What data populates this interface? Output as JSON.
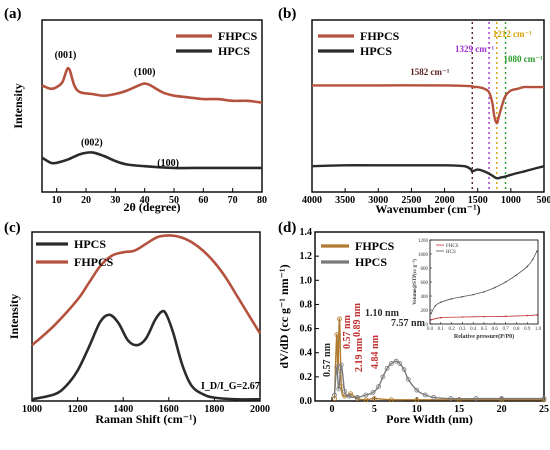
{
  "colors": {
    "fhpcs": "#b5523e",
    "hpcs": "#2b2b2b",
    "fhpcs_d": "#b07a30",
    "hpcs_d": "#7a7a7a"
  },
  "chart_data": [
    {
      "panel": "(a)",
      "type": "line",
      "xlabel": "2θ (degree)",
      "ylabel": "Intensity",
      "xlim": [
        5,
        80
      ],
      "xticks": [
        10,
        20,
        30,
        40,
        50,
        60,
        70,
        80
      ],
      "legend_position": "top-right",
      "series": [
        {
          "name": "FHPCS",
          "color": "#b5523e",
          "x": [
            5,
            8,
            10,
            12,
            14,
            16,
            18,
            22,
            26,
            30,
            34,
            38,
            40,
            42,
            46,
            50,
            55,
            60,
            65,
            70,
            75,
            80
          ],
          "y": [
            0.62,
            0.6,
            0.61,
            0.64,
            0.72,
            0.62,
            0.58,
            0.57,
            0.56,
            0.57,
            0.59,
            0.62,
            0.63,
            0.62,
            0.58,
            0.56,
            0.55,
            0.54,
            0.54,
            0.53,
            0.53,
            0.52
          ]
        },
        {
          "name": "HPCS",
          "color": "#2b2b2b",
          "x": [
            5,
            8,
            10,
            14,
            18,
            22,
            26,
            30,
            34,
            40,
            50,
            60,
            70,
            80
          ],
          "y": [
            0.2,
            0.17,
            0.17,
            0.19,
            0.22,
            0.23,
            0.21,
            0.18,
            0.16,
            0.15,
            0.14,
            0.14,
            0.14,
            0.14
          ]
        }
      ],
      "annotations": [
        {
          "text": "(001)",
          "x": 13,
          "y": 0.78
        },
        {
          "text": "(100)",
          "x": 40,
          "y": 0.68
        },
        {
          "text": "(002)",
          "x": 22,
          "y": 0.27
        },
        {
          "text": "(100)",
          "x": 48,
          "y": 0.15
        }
      ]
    },
    {
      "panel": "(b)",
      "type": "line",
      "xlabel": "Wavenumber (cm⁻¹)",
      "ylabel": "",
      "xlim": [
        4000,
        500
      ],
      "xticks": [
        4000,
        3500,
        3000,
        2500,
        2000,
        1500,
        1000,
        500
      ],
      "legend_position": "top-left",
      "series": [
        {
          "name": "FHPCS",
          "color": "#b5523e",
          "x": [
            4000,
            3000,
            2000,
            1600,
            1582,
            1500,
            1400,
            1329,
            1280,
            1250,
            1212,
            1180,
            1120,
            1080,
            1000,
            900,
            800,
            700,
            600,
            500
          ],
          "y": [
            0.62,
            0.62,
            0.62,
            0.615,
            0.61,
            0.61,
            0.6,
            0.58,
            0.52,
            0.44,
            0.4,
            0.44,
            0.52,
            0.56,
            0.59,
            0.6,
            0.61,
            0.61,
            0.61,
            0.61
          ]
        },
        {
          "name": "HPCS",
          "color": "#2b2b2b",
          "x": [
            4000,
            3500,
            3000,
            2000,
            1700,
            1600,
            1582,
            1500,
            1400,
            1300,
            1212,
            1150,
            1080,
            1000,
            800,
            600,
            500
          ],
          "y": [
            0.15,
            0.155,
            0.155,
            0.155,
            0.15,
            0.13,
            0.12,
            0.13,
            0.12,
            0.1,
            0.08,
            0.085,
            0.09,
            0.1,
            0.12,
            0.14,
            0.15
          ]
        }
      ],
      "annotations": [
        {
          "text": "1582 cm⁻¹",
          "x": 1582,
          "color": "#5a1f1f"
        },
        {
          "text": "1329 cm⁻¹",
          "x": 1329,
          "color": "#a030d0"
        },
        {
          "text": "1212 cm⁻¹",
          "x": 1212,
          "color": "#d4a000"
        },
        {
          "text": "1080 cm⁻¹",
          "x": 1080,
          "color": "#2a9a2a"
        }
      ]
    },
    {
      "panel": "(c)",
      "type": "line",
      "xlabel": "Raman Shift (cm⁻¹)",
      "ylabel": "Intensity",
      "xlim": [
        1000,
        2000
      ],
      "xticks": [
        1000,
        1200,
        1400,
        1600,
        1800,
        2000
      ],
      "legend_position": "top-left",
      "series": [
        {
          "name": "HPCS",
          "color": "#2b2b2b",
          "x": [
            1000,
            1100,
            1150,
            1200,
            1250,
            1300,
            1340,
            1380,
            1420,
            1460,
            1500,
            1540,
            1570,
            1590,
            1620,
            1660,
            1700,
            1750,
            1800,
            1900,
            2000
          ],
          "y": [
            0.01,
            0.04,
            0.09,
            0.18,
            0.32,
            0.47,
            0.51,
            0.46,
            0.36,
            0.33,
            0.37,
            0.48,
            0.53,
            0.51,
            0.4,
            0.21,
            0.09,
            0.04,
            0.02,
            0.01,
            0.01
          ]
        },
        {
          "name": "FHPCS",
          "color": "#b5523e",
          "x": [
            1000,
            1100,
            1200,
            1250,
            1300,
            1350,
            1400,
            1450,
            1500,
            1550,
            1600,
            1650,
            1700,
            1750,
            1800,
            1850,
            1900,
            1950,
            2000
          ],
          "y": [
            0.33,
            0.45,
            0.6,
            0.7,
            0.8,
            0.86,
            0.88,
            0.89,
            0.93,
            0.97,
            0.98,
            0.97,
            0.94,
            0.89,
            0.82,
            0.73,
            0.62,
            0.51,
            0.4
          ]
        }
      ],
      "annotations": [
        {
          "text": "I_D/I_G=2.67",
          "x": 1870,
          "y": 0.07
        }
      ]
    },
    {
      "panel": "(d)",
      "type": "line",
      "xlabel": "Pore Width (nm)",
      "ylabel": "dV/dD (cc g⁻¹ nm⁻¹)",
      "xlim": [
        -2,
        25
      ],
      "ylim": [
        0,
        1.4
      ],
      "xticks": [
        0,
        5,
        10,
        15,
        20,
        25
      ],
      "yticks": [
        0.0,
        0.2,
        0.4,
        0.6,
        0.8,
        1.0,
        1.2,
        1.4
      ],
      "legend_position": "top-left",
      "series": [
        {
          "name": "FHPCS",
          "color": "#b07a30",
          "x": [
            0.3,
            0.57,
            0.7,
            0.89,
            1.1,
            1.5,
            2.19,
            3,
            4,
            5,
            7,
            10,
            15,
            20,
            25
          ],
          "y": [
            0.02,
            0.55,
            0.25,
            0.68,
            0.12,
            0.04,
            0.06,
            0.02,
            0.01,
            0.02,
            0.01,
            0.01,
            0.01,
            0.01,
            0.01
          ]
        },
        {
          "name": "HPCS",
          "color": "#7a7a7a",
          "x": [
            0.3,
            0.57,
            0.8,
            1.1,
            1.5,
            2,
            3,
            4,
            4.84,
            5.5,
            6,
            6.5,
            7,
            7.57,
            8,
            8.5,
            9,
            10,
            11,
            12,
            14,
            17,
            20,
            25
          ],
          "y": [
            0.05,
            0.28,
            0.1,
            0.3,
            0.08,
            0.04,
            0.03,
            0.05,
            0.07,
            0.12,
            0.2,
            0.27,
            0.31,
            0.33,
            0.31,
            0.26,
            0.18,
            0.09,
            0.05,
            0.03,
            0.02,
            0.02,
            0.02,
            0.02
          ]
        }
      ],
      "annotations": [
        {
          "text": "0.57 nm",
          "x": 0.57,
          "color": "#2b2b2b"
        },
        {
          "text": "0.57 nm",
          "x": 0.9,
          "color": "#c03030"
        },
        {
          "text": "0.89 nm",
          "x": 1.3,
          "color": "#c03030"
        },
        {
          "text": "2.19 nm",
          "x": 2.3,
          "color": "#c03030"
        },
        {
          "text": "4.84 nm",
          "x": 4.84,
          "color": "#c03030"
        },
        {
          "text": "1.10 nm",
          "x": 5.2,
          "color": "#2b2b2b"
        },
        {
          "text": "7.57 nm",
          "x": 7.57,
          "color": "#2b2b2b"
        }
      ],
      "inset": {
        "type": "line",
        "xlabel": "Relative pressure(P/P0)",
        "ylabel": "Volume@STP(cc g⁻¹)",
        "xlim": [
          0,
          1.0
        ],
        "ylim": [
          0,
          1200
        ],
        "xticks": [
          "0.0",
          "0.1",
          "0.2",
          "0.3",
          "0.4",
          "0.5",
          "0.6",
          "0.7",
          "0.8",
          "0.9",
          "1.0"
        ],
        "yticks": [
          0,
          200,
          400,
          600,
          800,
          1000,
          1200
        ],
        "series": [
          {
            "name": "FHCS",
            "color": "#c03030",
            "x": [
              0.01,
              0.1,
              0.3,
              0.5,
              0.7,
              0.9,
              0.99
            ],
            "y": [
              60,
              90,
              100,
              105,
              110,
              120,
              130
            ]
          },
          {
            "name": "HCS",
            "color": "#555555",
            "x": [
              0.01,
              0.05,
              0.1,
              0.2,
              0.3,
              0.4,
              0.5,
              0.6,
              0.7,
              0.8,
              0.9,
              0.95,
              0.99
            ],
            "y": [
              150,
              260,
              310,
              360,
              390,
              420,
              460,
              520,
              600,
              700,
              820,
              920,
              1040
            ]
          }
        ]
      }
    }
  ]
}
